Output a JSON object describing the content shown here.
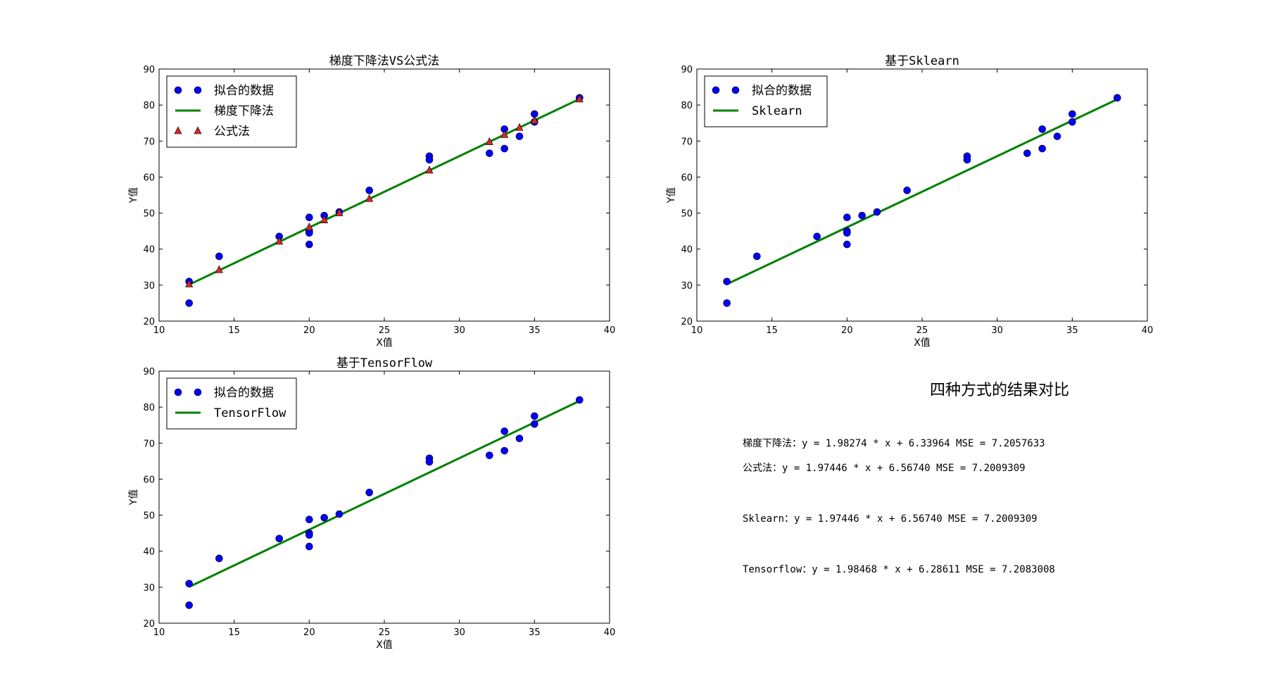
{
  "colors": {
    "data": "#0000ff",
    "line": "#008000",
    "formula": "#d62728",
    "axes": "#000000"
  },
  "chart_data": [
    {
      "type": "scatter",
      "title": "梯度下降法VS公式法",
      "xlabel": "X值",
      "ylabel": "Y值",
      "xlim": [
        10,
        40
      ],
      "ylim": [
        20,
        90
      ],
      "xticks": [
        10,
        15,
        20,
        25,
        30,
        35,
        40
      ],
      "yticks": [
        20,
        30,
        40,
        50,
        60,
        70,
        80,
        90
      ],
      "legend_position": "top-left",
      "series": [
        {
          "name": "拟合的数据",
          "kind": "points",
          "color": "#0000ff",
          "x": [
            12,
            12,
            14,
            18,
            20,
            20,
            20,
            20,
            21,
            22,
            24,
            28,
            28,
            32,
            33,
            33,
            34,
            35,
            35,
            38
          ],
          "y": [
            31,
            25,
            38,
            43.5,
            48.8,
            45,
            44.5,
            41.3,
            49.3,
            50.3,
            56.3,
            65.8,
            64.8,
            66.6,
            73.3,
            67.9,
            71.3,
            77.5,
            75.3,
            82
          ]
        },
        {
          "name": "梯度下降法",
          "kind": "line",
          "color": "#008000",
          "x": [
            12,
            38
          ],
          "y": [
            30.13,
            81.68
          ]
        },
        {
          "name": "公式法",
          "kind": "triangles",
          "color": "#d62728",
          "x": [
            12,
            14,
            18,
            20,
            21,
            22,
            24,
            28,
            32,
            33,
            34,
            35,
            38
          ],
          "y": [
            30.26,
            34.21,
            42.11,
            46.06,
            48.03,
            50.01,
            53.95,
            61.85,
            69.75,
            71.72,
            73.7,
            75.67,
            81.6
          ]
        }
      ]
    },
    {
      "type": "scatter",
      "title": "基于Sklearn",
      "xlabel": "X值",
      "ylabel": "Y值",
      "xlim": [
        10,
        40
      ],
      "ylim": [
        20,
        90
      ],
      "xticks": [
        10,
        15,
        20,
        25,
        30,
        35,
        40
      ],
      "yticks": [
        20,
        30,
        40,
        50,
        60,
        70,
        80,
        90
      ],
      "legend_position": "top-left",
      "series": [
        {
          "name": "拟合的数据",
          "kind": "points",
          "color": "#0000ff",
          "x": [
            12,
            12,
            14,
            18,
            20,
            20,
            20,
            20,
            21,
            22,
            24,
            28,
            28,
            32,
            33,
            33,
            34,
            35,
            35,
            38
          ],
          "y": [
            31,
            25,
            38,
            43.5,
            48.8,
            45,
            44.5,
            41.3,
            49.3,
            50.3,
            56.3,
            65.8,
            64.8,
            66.6,
            73.3,
            67.9,
            71.3,
            77.5,
            75.3,
            82
          ]
        },
        {
          "name": "Sklearn",
          "kind": "line",
          "color": "#008000",
          "x": [
            12,
            38
          ],
          "y": [
            30.26,
            81.6
          ]
        }
      ]
    },
    {
      "type": "scatter",
      "title": "基于TensorFlow",
      "xlabel": "X值",
      "ylabel": "Y值",
      "xlim": [
        10,
        40
      ],
      "ylim": [
        20,
        90
      ],
      "xticks": [
        10,
        15,
        20,
        25,
        30,
        35,
        40
      ],
      "yticks": [
        20,
        30,
        40,
        50,
        60,
        70,
        80,
        90
      ],
      "legend_position": "top-left",
      "series": [
        {
          "name": "拟合的数据",
          "kind": "points",
          "color": "#0000ff",
          "x": [
            12,
            12,
            14,
            18,
            20,
            20,
            20,
            20,
            21,
            22,
            24,
            28,
            28,
            32,
            33,
            33,
            34,
            35,
            35,
            38
          ],
          "y": [
            31,
            25,
            38,
            43.5,
            48.8,
            45,
            44.5,
            41.3,
            49.3,
            50.3,
            56.3,
            65.8,
            64.8,
            66.6,
            73.3,
            67.9,
            71.3,
            77.5,
            75.3,
            82
          ]
        },
        {
          "name": "TensorFlow",
          "kind": "line",
          "color": "#008000",
          "x": [
            12,
            38
          ],
          "y": [
            30.1,
            81.71
          ]
        }
      ]
    }
  ],
  "summary": {
    "title": "四种方式的结果对比",
    "lines": [
      "梯度下降法：y = 1.98274 * x + 6.33964  MSE = 7.2057633",
      "公式法：y = 1.97446 * x + 6.56740  MSE = 7.2009309",
      "Sklearn：y = 1.97446 * x + 6.56740  MSE = 7.2009309",
      "Tensorflow：y = 1.98468 * x + 6.28611  MSE = 7.2083008"
    ]
  }
}
